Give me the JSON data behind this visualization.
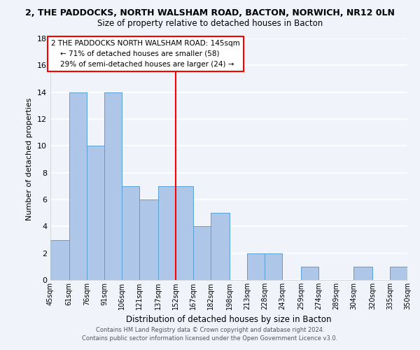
{
  "title1": "2, THE PADDOCKS, NORTH WALSHAM ROAD, BACTON, NORWICH, NR12 0LN",
  "title2": "Size of property relative to detached houses in Bacton",
  "xlabel": "Distribution of detached houses by size in Bacton",
  "ylabel": "Number of detached properties",
  "bin_edges": [
    45,
    61,
    76,
    91,
    106,
    121,
    137,
    152,
    167,
    182,
    198,
    213,
    228,
    243,
    259,
    274,
    289,
    304,
    320,
    335,
    350
  ],
  "bar_heights": [
    3,
    14,
    10,
    14,
    7,
    6,
    7,
    7,
    4,
    5,
    0,
    2,
    2,
    0,
    1,
    0,
    0,
    1,
    0,
    1
  ],
  "bar_color": "#aec6e8",
  "bar_edge_color": "#5a9fd4",
  "property_line_x": 152,
  "ylim": [
    0,
    18
  ],
  "yticks": [
    0,
    2,
    4,
    6,
    8,
    10,
    12,
    14,
    16,
    18
  ],
  "annotation_line1": "2 THE PADDOCKS NORTH WALSHAM ROAD: 145sqm",
  "annotation_line2": "← 71% of detached houses are smaller (58)",
  "annotation_line3": "29% of semi-detached houses are larger (24) →",
  "footer1": "Contains HM Land Registry data © Crown copyright and database right 2024.",
  "footer2": "Contains public sector information licensed under the Open Government Licence v3.0.",
  "background_color": "#f0f4fa"
}
